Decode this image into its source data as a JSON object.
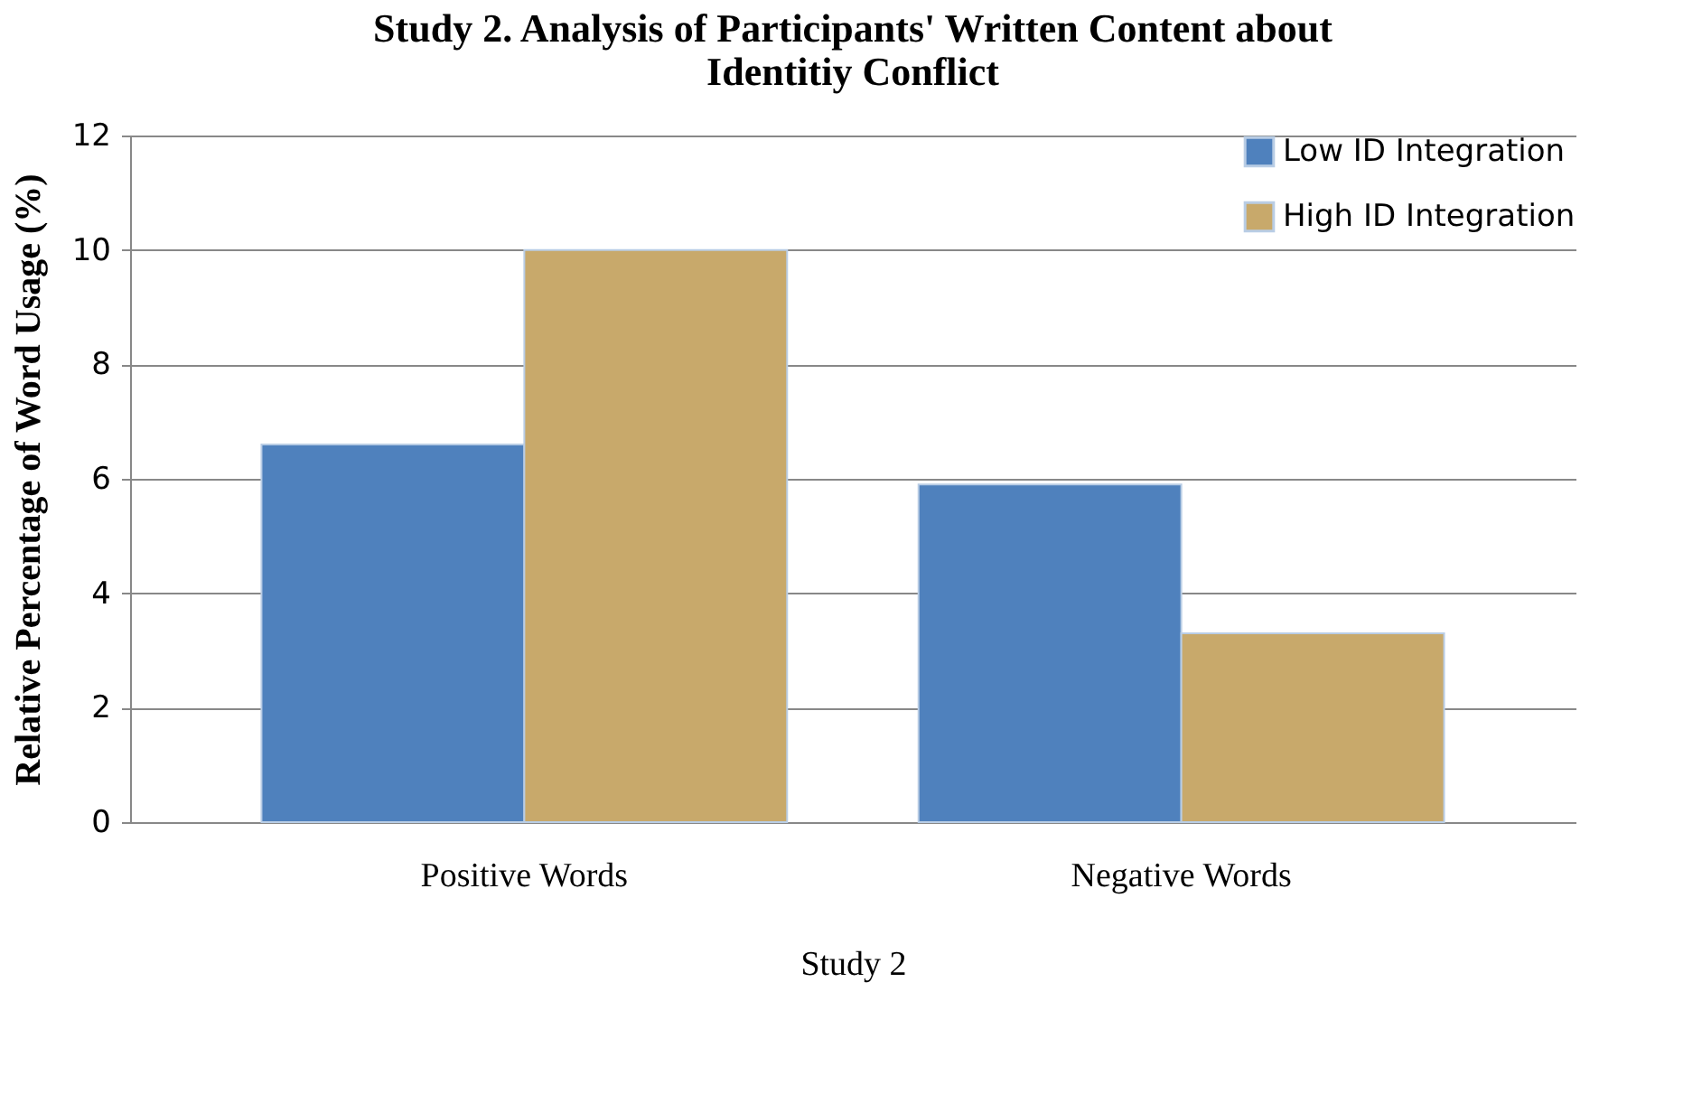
{
  "chart_data": {
    "type": "bar",
    "title": "Study 2. Analysis of Participants' Written Content about Identitiy Conflict",
    "xlabel": "Study 2",
    "ylabel": "Relative Percentage of Word Usage (%)",
    "categories": [
      "Positive Words",
      "Negative Words"
    ],
    "series": [
      {
        "name": "Low ID Integration",
        "color": "#4f81bd",
        "values": [
          6.6,
          5.9
        ]
      },
      {
        "name": "High ID Integration",
        "color": "#c8a96b",
        "values": [
          10.0,
          3.3
        ]
      }
    ],
    "ylim": [
      0,
      12
    ],
    "yticks": [
      0,
      2,
      4,
      6,
      8,
      10,
      12
    ],
    "grid": "y",
    "legend": "top right"
  }
}
